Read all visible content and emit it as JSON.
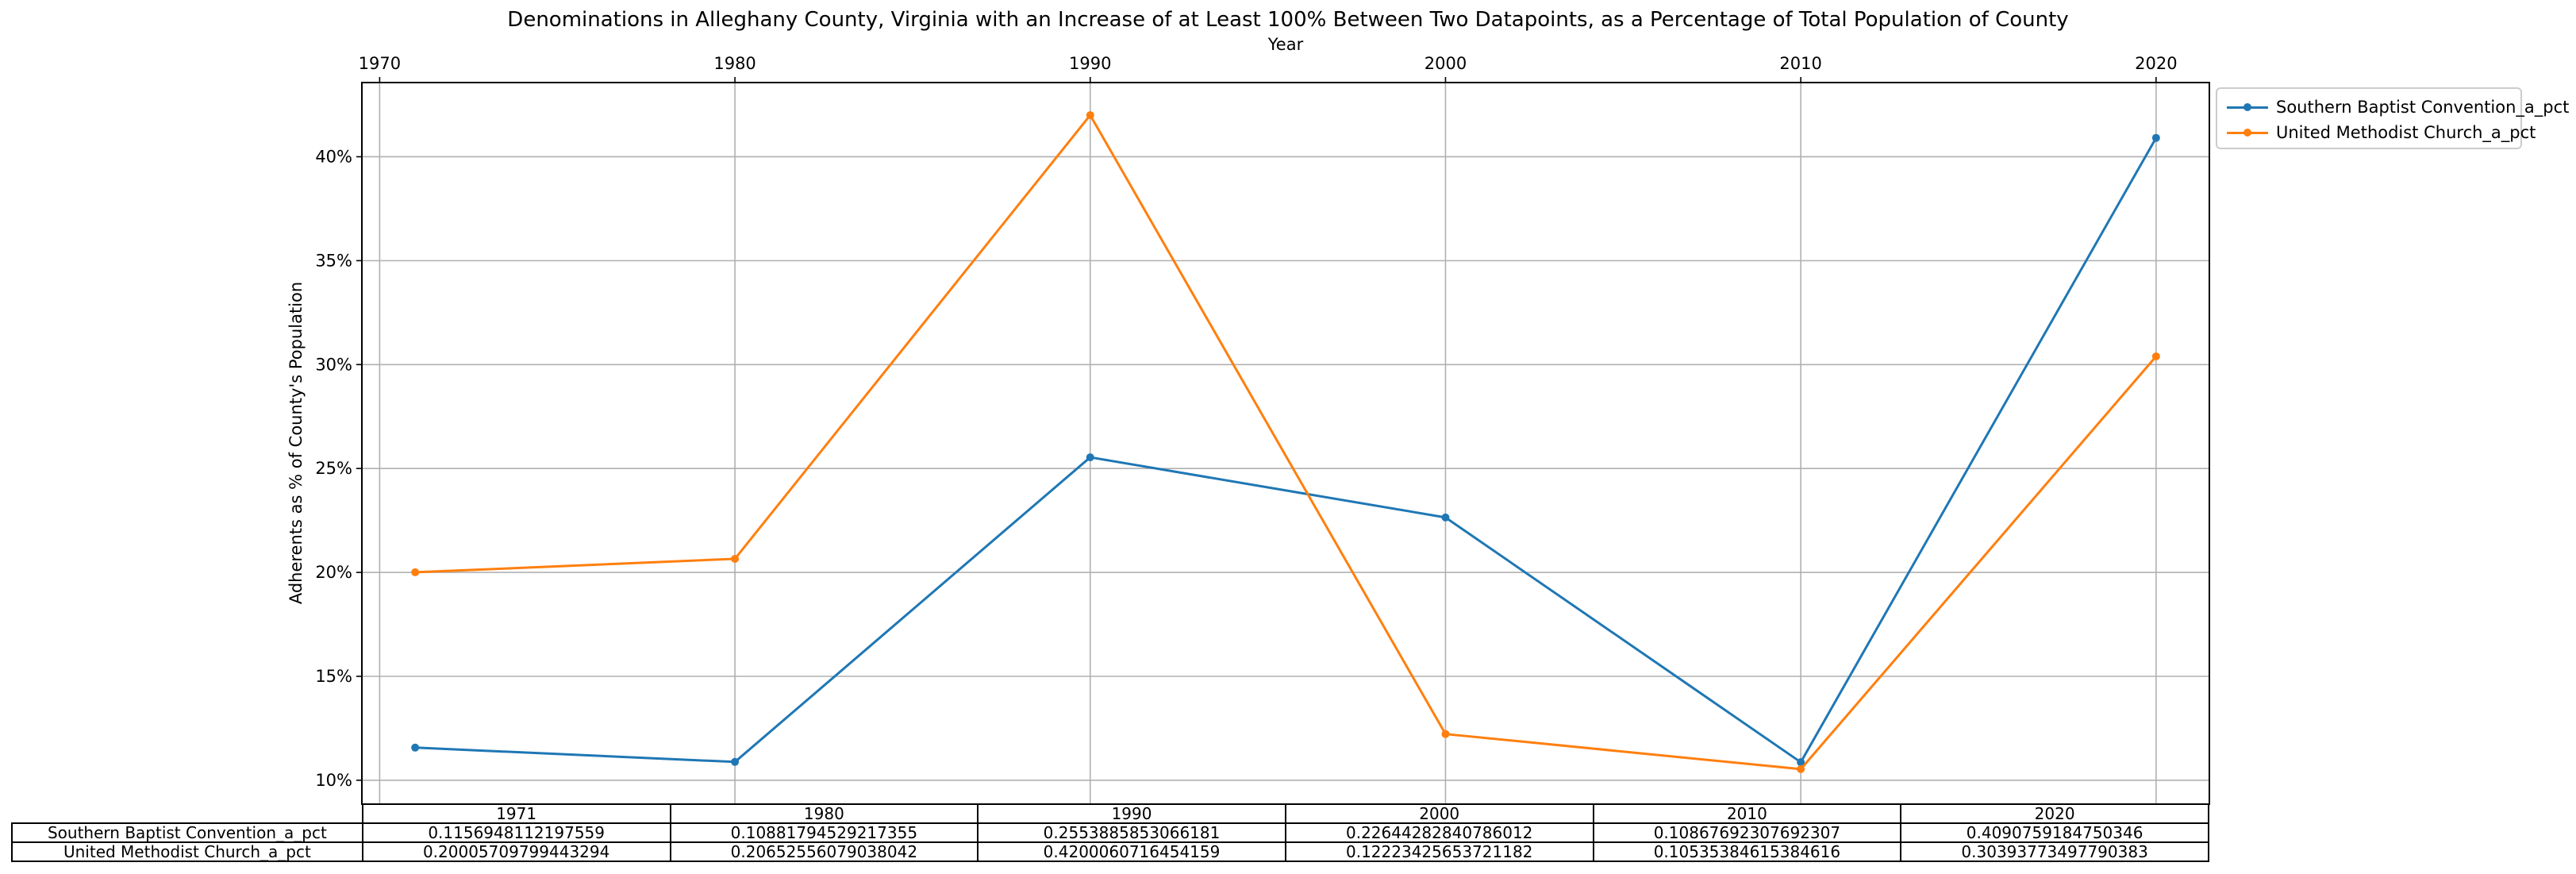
{
  "chart_data": {
    "type": "line",
    "title": "Denominations in Alleghany County, Virginia with an Increase of at Least 100% Between Two Datapoints, as a Percentage of Total Population of County",
    "xlabel": "Year",
    "ylabel": "Adherents as % of County's Population",
    "x": [
      1971,
      1980,
      1990,
      2000,
      2010,
      2020
    ],
    "xlim": [
      1969.5,
      2021.5
    ],
    "ylim": [
      0.0885,
      0.4357
    ],
    "x_ticks": [
      1970,
      1980,
      1990,
      2000,
      2010,
      2020
    ],
    "x_tick_labels": [
      "1970",
      "1980",
      "1990",
      "2000",
      "2010",
      "2020"
    ],
    "y_ticks": [
      0.1,
      0.15,
      0.2,
      0.25,
      0.3,
      0.35,
      0.4
    ],
    "y_tick_labels": [
      "10%",
      "15%",
      "20%",
      "25%",
      "30%",
      "35%",
      "40%"
    ],
    "grid": true,
    "legend_position": "outside-top-right",
    "series": [
      {
        "name": "Southern Baptist Convention_a_pct",
        "color": "#1f77b4",
        "values": [
          0.1156948112197559,
          0.10881794529217355,
          0.2553885853066181,
          0.22644282840786012,
          0.10867692307692307,
          0.4090759184750346
        ]
      },
      {
        "name": "United Methodist Church_a_pct",
        "color": "#ff7f0e",
        "values": [
          0.20005709799443294,
          0.20652556079038042,
          0.4200060716454159,
          0.12223425653721182,
          0.10535384615384616,
          0.30393773497790383
        ]
      }
    ],
    "table": {
      "col_labels": [
        "1971",
        "1980",
        "1990",
        "2000",
        "2010",
        "2020"
      ],
      "rows": [
        {
          "label": "Southern Baptist Convention_a_pct",
          "cells": [
            "0.1156948112197559",
            "0.10881794529217355",
            "0.2553885853066181",
            "0.22644282840786012",
            "0.10867692307692307",
            "0.4090759184750346"
          ]
        },
        {
          "label": "United Methodist Church_a_pct",
          "cells": [
            "0.20005709799443294",
            "0.20652556079038042",
            "0.4200060716454159",
            "0.12223425653721182",
            "0.10535384615384616",
            "0.30393773497790383"
          ]
        }
      ]
    }
  }
}
